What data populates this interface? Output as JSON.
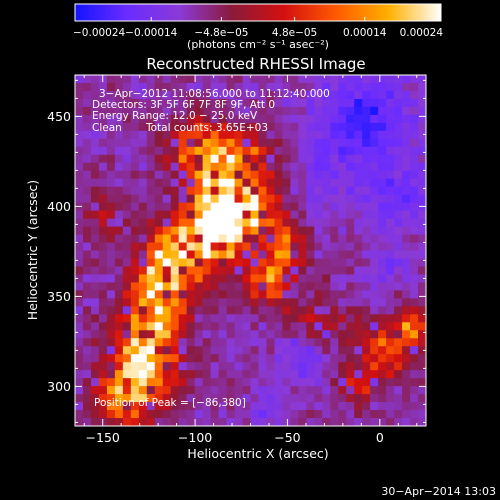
{
  "chart_data": {
    "type": "heatmap",
    "title": "Reconstructed RHESSI Image",
    "xlabel": "Heliocentric X (arcsec)",
    "ylabel": "Heliocentric Y (arcsec)",
    "xlim": [
      -165,
      25
    ],
    "ylim": [
      278,
      473
    ],
    "xticks": [
      -150,
      -100,
      -50,
      0
    ],
    "yticks": [
      300,
      350,
      400,
      450
    ],
    "xtick_labels": [
      "−150",
      "−100",
      "−50",
      "0"
    ],
    "ytick_labels": [
      "300",
      "350",
      "400",
      "450"
    ],
    "colorbar": {
      "range": [
        -0.00024,
        0.00024
      ],
      "ticks": [
        -0.00024,
        -0.00014,
        -4.8e-05,
        4.8e-05,
        0.00014,
        0.00024
      ],
      "tick_labels": [
        "−0.00024",
        "−0.00014",
        "−4.8e−05",
        "4.8e−05",
        "0.00014",
        "0.00024"
      ],
      "units_line": "(photons cm⁻² s⁻¹ asec⁻²)",
      "colors": [
        "#1414ff",
        "#6a2cff",
        "#8a3ad8",
        "#8a1a3a",
        "#d41010",
        "#ff5a00",
        "#ffb000",
        "#ffffff"
      ]
    },
    "annotations": {
      "time": "3−Apr−2012 11:08:56.000 to 11:12:40.000",
      "detectors": "Detectors: 3F 5F 6F 7F 8F 9F, Att 0",
      "energy": "Energy Range: 12.0 − 25.0 keV",
      "method": "Clean",
      "counts": "Total counts: 3.65E+03",
      "peak": "Position of Peak = [−86,380]"
    },
    "peak": [
      -86,
      380
    ],
    "grid": false
  },
  "footer": {
    "timestamp": "30−Apr−2014 13:03"
  }
}
